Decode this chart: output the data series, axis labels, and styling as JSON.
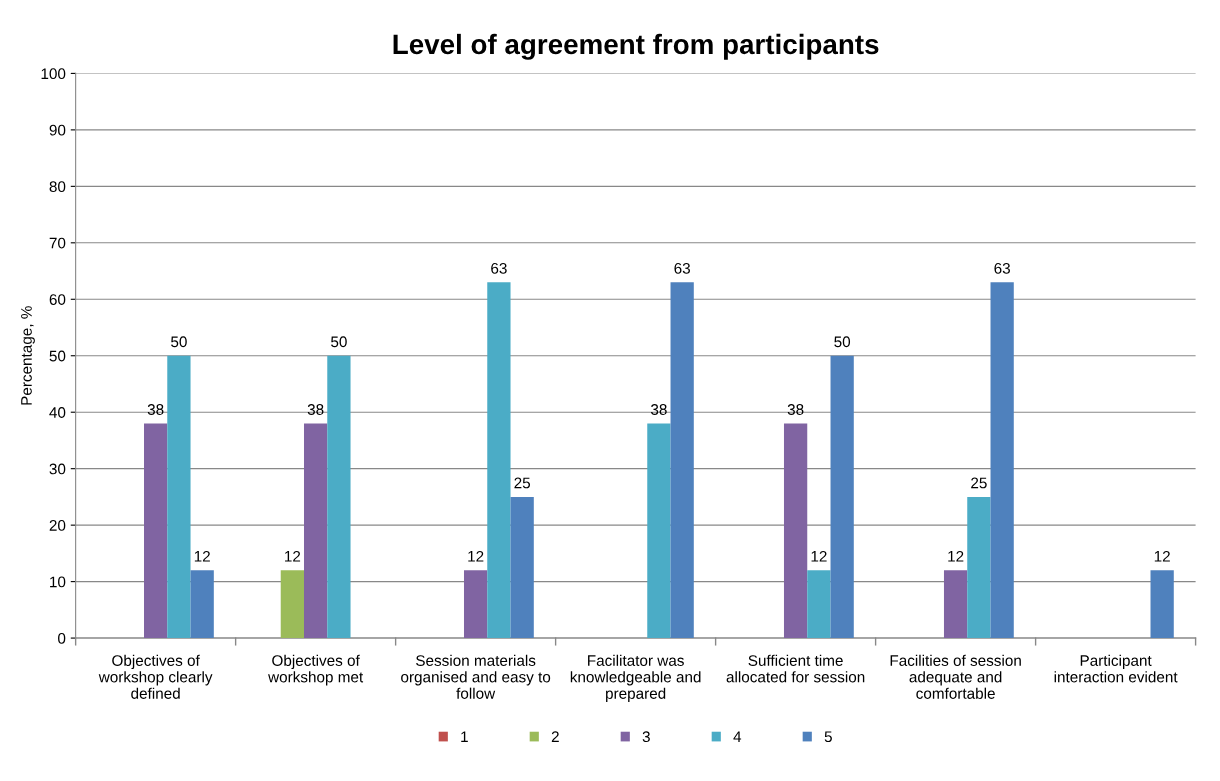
{
  "chart_data": {
    "type": "bar",
    "title": "Level of agreement from participants",
    "ylabel": "Percentage, %",
    "categories": [
      "Objectives of\nworkshop clearly\ndefined",
      "Objectives of\nworkshop met",
      "Session materials\norganised and easy to\nfollow",
      "Facilitator was\nknowledgeable and\nprepared",
      "Sufficient time\nallocated for session",
      "Facilities of session\nadequate and\ncomfortable",
      "Participant\ninteraction evident"
    ],
    "series": [
      {
        "name": "1",
        "color": "#c0504d",
        "values": [
          null,
          null,
          null,
          null,
          null,
          null,
          null
        ]
      },
      {
        "name": "2",
        "color": "#9bbb59",
        "values": [
          null,
          12,
          null,
          null,
          null,
          null,
          null
        ]
      },
      {
        "name": "3",
        "color": "#8064a2",
        "values": [
          38,
          38,
          12,
          null,
          38,
          12,
          null
        ]
      },
      {
        "name": "4",
        "color": "#4bacc6",
        "values": [
          50,
          50,
          63,
          38,
          12,
          25,
          null
        ]
      },
      {
        "name": "5",
        "color": "#4f81bd",
        "values": [
          12,
          null,
          25,
          63,
          50,
          63,
          12
        ]
      }
    ],
    "ylim": [
      0,
      100
    ],
    "yticks": [
      0,
      10,
      20,
      30,
      40,
      50,
      60,
      70,
      80,
      90,
      100
    ],
    "grid": "y",
    "legend": "bottom",
    "data_labels": true
  }
}
